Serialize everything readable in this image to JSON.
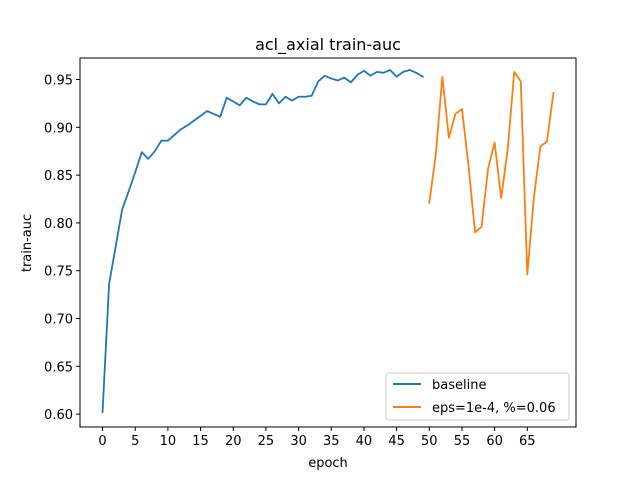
{
  "chart_data": {
    "type": "line",
    "title": "acl_axial train-auc",
    "xlabel": "epoch",
    "ylabel": "train-auc",
    "xlim": [
      -3.45,
      72.45
    ],
    "ylim": [
      0.5865,
      0.9725
    ],
    "xticks": [
      0,
      5,
      10,
      15,
      20,
      25,
      30,
      35,
      40,
      45,
      50,
      55,
      60,
      65
    ],
    "yticks": [
      0.6,
      0.65,
      0.7,
      0.75,
      0.8,
      0.85,
      0.9,
      0.95
    ],
    "grid": false,
    "legend_position": "lower-right",
    "series": [
      {
        "name": "baseline",
        "color": "#1f77b4",
        "x": [
          0,
          1,
          2,
          3,
          4,
          5,
          6,
          7,
          8,
          9,
          10,
          11,
          12,
          13,
          14,
          15,
          16,
          17,
          18,
          19,
          20,
          21,
          22,
          23,
          24,
          25,
          26,
          27,
          28,
          29,
          30,
          31,
          32,
          33,
          34,
          35,
          36,
          37,
          38,
          39,
          40,
          41,
          42,
          43,
          44,
          45,
          46,
          47,
          48,
          49
        ],
        "y": [
          0.602,
          0.736,
          0.775,
          0.814,
          0.833,
          0.853,
          0.874,
          0.867,
          0.875,
          0.886,
          0.886,
          0.892,
          0.898,
          0.902,
          0.907,
          0.912,
          0.917,
          0.914,
          0.911,
          0.931,
          0.927,
          0.923,
          0.931,
          0.927,
          0.924,
          0.924,
          0.935,
          0.925,
          0.932,
          0.928,
          0.932,
          0.932,
          0.933,
          0.948,
          0.954,
          0.951,
          0.949,
          0.952,
          0.947,
          0.955,
          0.959,
          0.954,
          0.958,
          0.957,
          0.96,
          0.953,
          0.958,
          0.96,
          0.957,
          0.953
        ]
      },
      {
        "name": "eps=1e-4, %=0.06",
        "color": "#ff7f0e",
        "x": [
          50,
          51,
          52,
          53,
          54,
          55,
          56,
          57,
          58,
          59,
          60,
          61,
          62,
          63,
          64,
          65,
          66,
          67,
          68,
          69
        ],
        "y": [
          0.821,
          0.872,
          0.953,
          0.889,
          0.914,
          0.919,
          0.86,
          0.79,
          0.796,
          0.857,
          0.884,
          0.826,
          0.877,
          0.958,
          0.948,
          0.746,
          0.826,
          0.88,
          0.885,
          0.936
        ]
      }
    ]
  }
}
